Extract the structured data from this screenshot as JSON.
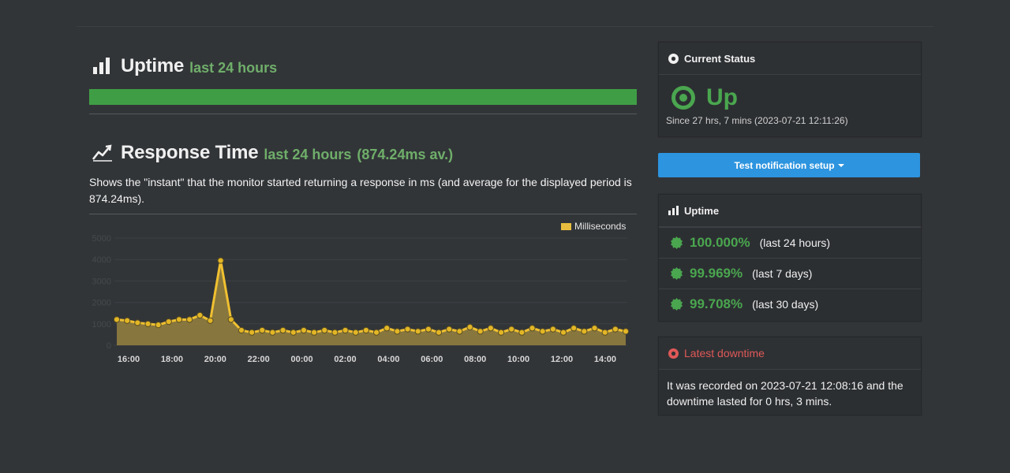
{
  "uptime_section": {
    "title": "Uptime",
    "period": "last 24 hours",
    "bar_percent": 100
  },
  "response_section": {
    "title": "Response Time",
    "period": "last 24 hours",
    "average": "(874.24ms av.)",
    "description": "Shows the \"instant\" that the monitor started returning a response in ms (and average for the displayed period is 874.24ms)."
  },
  "chart_data": {
    "type": "area",
    "series": [
      {
        "name": "Milliseconds",
        "values": [
          1200,
          1150,
          1050,
          1000,
          950,
          1100,
          1200,
          1200,
          1400,
          1150,
          3950,
          1200,
          700,
          600,
          700,
          600,
          700,
          600,
          700,
          600,
          700,
          600,
          700,
          600,
          700,
          600,
          800,
          650,
          750,
          650,
          750,
          600,
          750,
          650,
          850,
          650,
          800,
          600,
          750,
          600,
          800,
          650,
          750,
          600,
          800,
          650,
          800,
          600,
          750,
          650
        ]
      }
    ],
    "x_labels": [
      "16:00",
      "18:00",
      "20:00",
      "22:00",
      "00:00",
      "02:00",
      "04:00",
      "06:00",
      "08:00",
      "10:00",
      "12:00",
      "14:00"
    ],
    "y_ticks": [
      "0",
      "1000",
      "2000",
      "3000",
      "4000",
      "5000"
    ],
    "ylim": [
      0,
      5000
    ],
    "legend_position": "top-right",
    "colors": {
      "line": "#f0c030",
      "fill": "#8c7a3e",
      "point": "#e2b626"
    }
  },
  "current_status": {
    "title": "Current Status",
    "state": "Up",
    "since": "Since 27 hrs, 7 mins (2023-07-21 12:11:26)"
  },
  "notification_button": {
    "label": "Test notification setup"
  },
  "uptime_panel": {
    "title": "Uptime",
    "items": [
      {
        "pct": "100.000%",
        "period": "(last 24 hours)"
      },
      {
        "pct": "99.969%",
        "period": "(last 7 days)"
      },
      {
        "pct": "99.708%",
        "period": "(last 30 days)"
      }
    ]
  },
  "latest_downtime": {
    "title": "Latest downtime",
    "text": "It was recorded on 2023-07-21 12:08:16 and the downtime lasted for 0 hrs, 3 mins."
  },
  "colors": {
    "background": "#323538",
    "green": "#4aa64f",
    "red": "#e05858",
    "blue": "#2d94df"
  }
}
